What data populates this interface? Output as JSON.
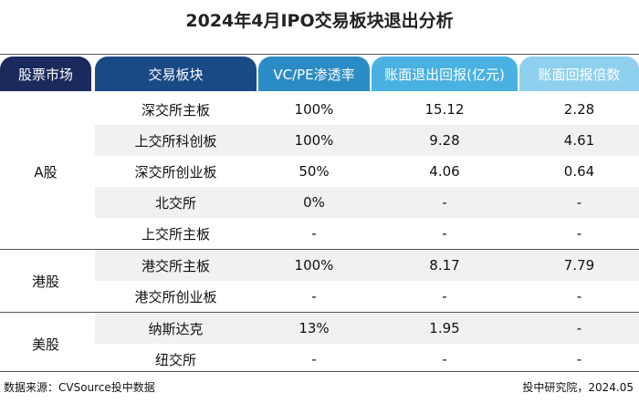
{
  "title": "2024年4月IPO交易板块退出分析",
  "headers": {
    "market": "股票市场",
    "board": "交易板块",
    "penetration": "VC/PE渗透率",
    "return": "账面退出回报(亿元)",
    "multiple": "账面回报倍数"
  },
  "header_colors": [
    "#1a2a5c",
    "#1a4a86",
    "#2b8bc4",
    "#49b2e2",
    "#8fd0ef"
  ],
  "groups": [
    {
      "market": "A股",
      "rows": [
        {
          "board": "深交所主板",
          "penetration": "100%",
          "return": "15.12",
          "multiple": "2.28"
        },
        {
          "board": "上交所科创板",
          "penetration": "100%",
          "return": "9.28",
          "multiple": "4.61"
        },
        {
          "board": "深交所创业板",
          "penetration": "50%",
          "return": "4.06",
          "multiple": "0.64"
        },
        {
          "board": "北交所",
          "penetration": "0%",
          "return": "-",
          "multiple": "-"
        },
        {
          "board": "上交所主板",
          "penetration": "-",
          "return": "-",
          "multiple": "-"
        }
      ]
    },
    {
      "market": "港股",
      "rows": [
        {
          "board": "港交所主板",
          "penetration": "100%",
          "return": "8.17",
          "multiple": "7.79"
        },
        {
          "board": "港交所创业板",
          "penetration": "-",
          "return": "-",
          "multiple": "-"
        }
      ]
    },
    {
      "market": "美股",
      "rows": [
        {
          "board": "纳斯达克",
          "penetration": "13%",
          "return": "1.95",
          "multiple": "-"
        },
        {
          "board": "纽交所",
          "penetration": "-",
          "return": "-",
          "multiple": "-"
        }
      ]
    }
  ],
  "footer": {
    "source": "数据来源：CVSource投中数据",
    "credit": "投中研究院，2024.05"
  }
}
